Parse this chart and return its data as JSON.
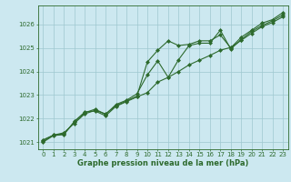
{
  "x": [
    0,
    1,
    2,
    3,
    4,
    5,
    6,
    7,
    8,
    9,
    10,
    11,
    12,
    13,
    14,
    15,
    16,
    17,
    18,
    19,
    20,
    21,
    22,
    23
  ],
  "line1": [
    1021.1,
    1021.3,
    1021.4,
    1021.8,
    1022.2,
    1022.35,
    1022.2,
    1022.55,
    1022.75,
    1022.95,
    1024.4,
    1024.9,
    1025.3,
    1025.1,
    1025.15,
    1025.3,
    1025.3,
    1025.55,
    1025.0,
    1025.45,
    1025.75,
    1026.05,
    1026.2,
    1026.5
  ],
  "line2": [
    1021.05,
    1021.3,
    1021.35,
    1021.85,
    1022.25,
    1022.4,
    1022.18,
    1022.6,
    1022.78,
    1023.05,
    1023.85,
    1024.45,
    1023.75,
    1024.5,
    1025.1,
    1025.2,
    1025.2,
    1025.75,
    1024.95,
    1025.35,
    1025.7,
    1025.95,
    1026.15,
    1026.4
  ],
  "line3": [
    1021.0,
    1021.28,
    1021.32,
    1021.88,
    1022.28,
    1022.32,
    1022.12,
    1022.52,
    1022.72,
    1022.92,
    1023.1,
    1023.55,
    1023.75,
    1024.0,
    1024.28,
    1024.48,
    1024.68,
    1024.9,
    1025.02,
    1025.32,
    1025.62,
    1025.9,
    1026.08,
    1026.32
  ],
  "line_color": "#2d6a2d",
  "bg_color": "#cce8f0",
  "grid_color": "#9fc8d0",
  "xlabel": "Graphe pression niveau de la mer (hPa)",
  "ylim": [
    1020.7,
    1026.8
  ],
  "yticks": [
    1021,
    1022,
    1023,
    1024,
    1025,
    1026
  ],
  "xticks": [
    0,
    1,
    2,
    3,
    4,
    5,
    6,
    7,
    8,
    9,
    10,
    11,
    12,
    13,
    14,
    15,
    16,
    17,
    18,
    19,
    20,
    21,
    22,
    23
  ],
  "marker": "D",
  "markersize": 2.0,
  "linewidth": 0.8,
  "xlabel_fontsize": 6.0,
  "tick_fontsize": 5.0
}
